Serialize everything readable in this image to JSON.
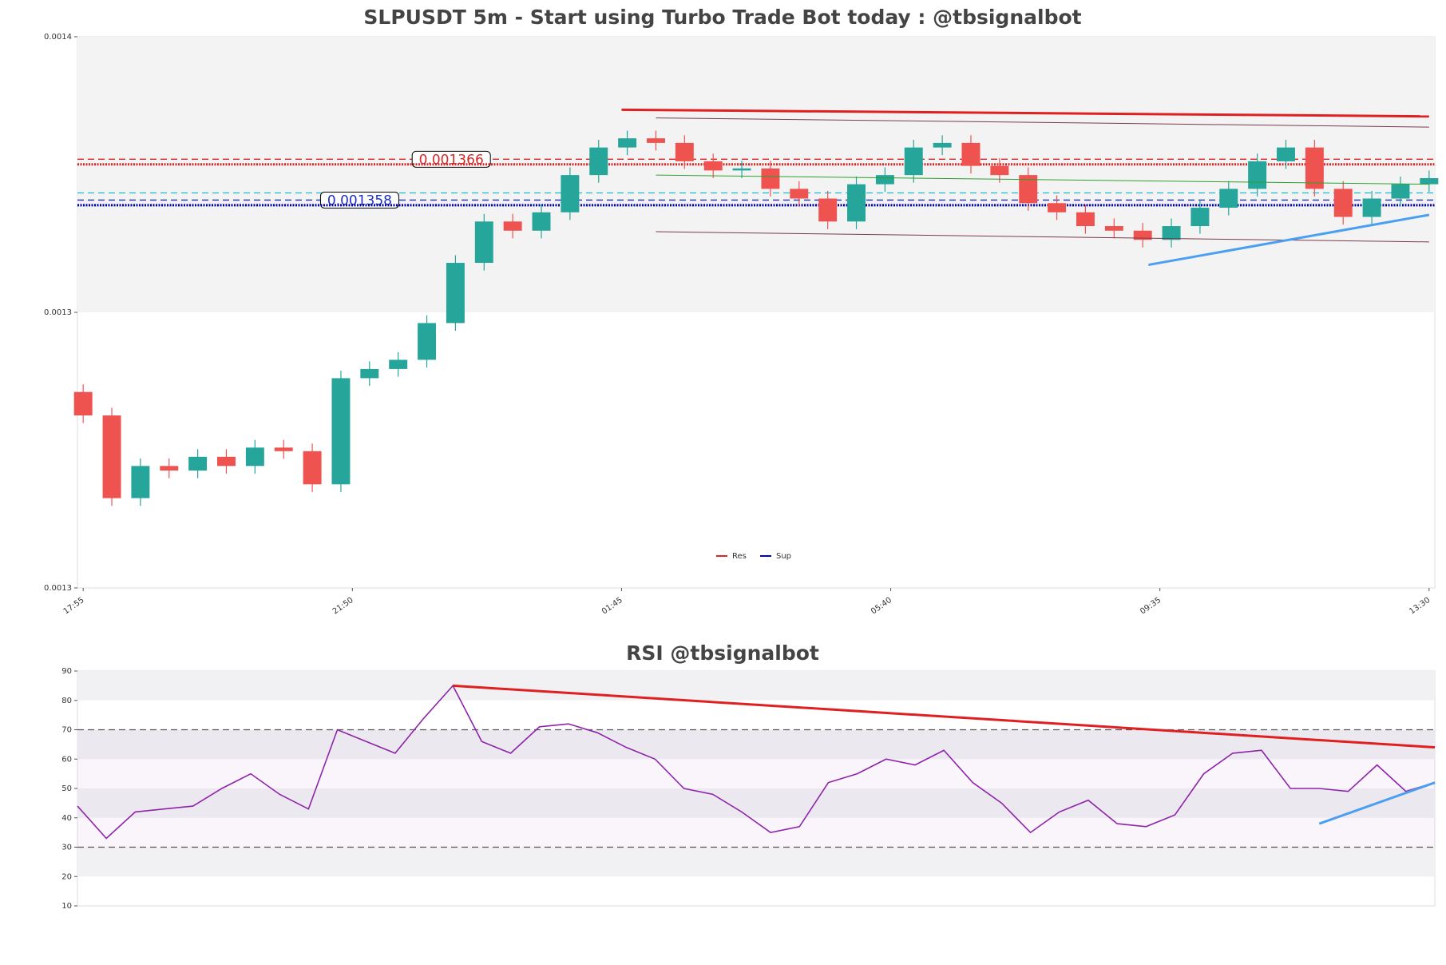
{
  "chart_data": [
    {
      "type": "candlestick",
      "title": "SLPUSDT 5m - Start using Turbo Trade Bot today : @tbsignalbot",
      "x": [
        0,
        5,
        10,
        15,
        20,
        25,
        30,
        35,
        40,
        45,
        50,
        55,
        60,
        65,
        70,
        75,
        80,
        85,
        90,
        95,
        100,
        105,
        110,
        115,
        120,
        125,
        130,
        135,
        140,
        145,
        150,
        155,
        160,
        165,
        170,
        175,
        180,
        185,
        190,
        195,
        200,
        205,
        210,
        215,
        220,
        225,
        230,
        235
      ],
      "open": [
        0.0013204,
        0.0013158,
        0.0012996,
        0.0013059,
        0.001305,
        0.0013077,
        0.0013059,
        0.0013095,
        0.0013088,
        0.0013023,
        0.0013231,
        0.0013249,
        0.0013267,
        0.0013339,
        0.0013457,
        0.0013538,
        0.001352,
        0.0013556,
        0.0013629,
        0.0013683,
        0.0013701,
        0.0013692,
        0.0013656,
        0.0013638,
        0.0013642,
        0.0013602,
        0.0013583,
        0.0013538,
        0.0013611,
        0.0013629,
        0.0013683,
        0.0013692,
        0.0013647,
        0.0013629,
        0.0013574,
        0.0013556,
        0.0013529,
        0.001352,
        0.0013502,
        0.0013529,
        0.0013565,
        0.0013602,
        0.0013656,
        0.0013683,
        0.0013602,
        0.0013547,
        0.0013583,
        0.0013611
      ],
      "high": [
        0.0013219,
        0.0013173,
        0.0013074,
        0.0013074,
        0.0013092,
        0.0013092,
        0.001311,
        0.001311,
        0.0013103,
        0.0013246,
        0.0013264,
        0.0013282,
        0.0013354,
        0.0013472,
        0.0013553,
        0.0013553,
        0.0013571,
        0.0013644,
        0.0013698,
        0.0013716,
        0.0013716,
        0.0013707,
        0.0013671,
        0.0013657,
        0.0013657,
        0.0013617,
        0.0013598,
        0.0013626,
        0.0013644,
        0.0013698,
        0.0013707,
        0.0013707,
        0.0013662,
        0.0013644,
        0.0013589,
        0.0013571,
        0.0013544,
        0.0013535,
        0.0013544,
        0.001358,
        0.0013617,
        0.0013671,
        0.0013698,
        0.0013698,
        0.0013617,
        0.0013598,
        0.0013626,
        0.0013638
      ],
      "low": [
        0.0013143,
        0.0012981,
        0.0012981,
        0.0013035,
        0.0013035,
        0.0013044,
        0.0013044,
        0.0013073,
        0.0013008,
        0.0013008,
        0.0013216,
        0.0013234,
        0.0013252,
        0.0013324,
        0.0013442,
        0.0013505,
        0.0013505,
        0.0013541,
        0.0013614,
        0.0013668,
        0.0013677,
        0.0013641,
        0.0013623,
        0.0013623,
        0.0013587,
        0.0013568,
        0.0013523,
        0.0013523,
        0.0013596,
        0.0013614,
        0.0013668,
        0.0013632,
        0.0013614,
        0.0013559,
        0.0013541,
        0.0013514,
        0.0013505,
        0.0013487,
        0.0013487,
        0.0013514,
        0.001355,
        0.0013587,
        0.0013641,
        0.0013587,
        0.0013532,
        0.0013532,
        0.0013568,
        0.0013596
      ],
      "close": [
        0.0013158,
        0.0012996,
        0.0013059,
        0.001305,
        0.0013077,
        0.0013059,
        0.0013095,
        0.0013088,
        0.0013023,
        0.0013231,
        0.0013249,
        0.0013267,
        0.0013339,
        0.0013457,
        0.0013538,
        0.001352,
        0.0013556,
        0.0013629,
        0.0013683,
        0.0013701,
        0.0013692,
        0.0013656,
        0.0013638,
        0.0013642,
        0.0013602,
        0.0013583,
        0.0013538,
        0.0013611,
        0.0013629,
        0.0013683,
        0.0013692,
        0.0013647,
        0.0013629,
        0.0013574,
        0.0013556,
        0.0013529,
        0.001352,
        0.0013502,
        0.0013529,
        0.0013565,
        0.0013602,
        0.0013656,
        0.0013683,
        0.0013602,
        0.0013547,
        0.0013583,
        0.0013611,
        0.0013623
      ],
      "up_color": "#26a69a",
      "down_color": "#ef5350",
      "xlim": [
        -1,
        236
      ],
      "xticks": [
        {
          "value": 0,
          "label": "17:55"
        },
        {
          "value": 47,
          "label": "21:50"
        },
        {
          "value": 94,
          "label": "01:45"
        },
        {
          "value": 141,
          "label": "05:40"
        },
        {
          "value": 188,
          "label": "09:35"
        },
        {
          "value": 235,
          "label": "13:30"
        }
      ],
      "ylim": [
        0.001282,
        0.00139
      ],
      "yticks": [
        {
          "value": 0.001282,
          "label": "0.0013"
        },
        {
          "value": 0.001336,
          "label": "0.0013"
        },
        {
          "value": 0.00139,
          "label": "0.0014"
        }
      ],
      "levels": [
        {
          "value": 0.001366,
          "label": "0.001366",
          "color": "#d62728",
          "style": "dashed"
        },
        {
          "value": 0.001365,
          "color": "#d62728",
          "style": "dotted"
        },
        {
          "value": 0.0013594,
          "color": "#17becf",
          "style": "dashed"
        },
        {
          "value": 0.001358,
          "label": "0.001358",
          "color": "#1f2fbf",
          "style": "dashed"
        },
        {
          "value": 0.001357,
          "color": "#0000aa",
          "style": "dotted"
        }
      ],
      "trendlines": [
        {
          "x": [
            94,
            235
          ],
          "y": [
            0.0013757,
            0.0013744
          ],
          "color": "#e02020",
          "width": 3
        },
        {
          "x": [
            100,
            235
          ],
          "y": [
            0.0013741,
            0.0013723
          ],
          "color": "#7a3b4d",
          "width": 1
        },
        {
          "x": [
            100,
            235
          ],
          "y": [
            0.0013518,
            0.0013498
          ],
          "color": "#7a3b4d",
          "width": 1
        },
        {
          "x": [
            100,
            235
          ],
          "y": [
            0.0013629,
            0.0013611
          ],
          "color": "#2ca02c",
          "width": 1
        },
        {
          "x": [
            186,
            235
          ],
          "y": [
            0.0013453,
            0.0013551
          ],
          "color": "#4a9ff0",
          "width": 3
        }
      ],
      "legend": [
        {
          "name": "Res",
          "color": "#d62728"
        },
        {
          "name": "Sup",
          "color": "#0000cc"
        }
      ],
      "legend_loc": "lower center"
    },
    {
      "type": "line",
      "title": "RSI @tbsignalbot",
      "x": [
        0,
        5,
        10,
        15,
        20,
        25,
        30,
        35,
        40,
        45,
        50,
        55,
        60,
        65,
        70,
        75,
        80,
        85,
        90,
        95,
        100,
        105,
        110,
        115,
        120,
        125,
        130,
        135,
        140,
        145,
        150,
        155,
        160,
        165,
        170,
        175,
        180,
        185,
        190,
        195,
        200,
        205,
        210,
        215,
        220,
        225,
        230,
        235
      ],
      "values": [
        44,
        33,
        42,
        43,
        44,
        50,
        55,
        48,
        43,
        70,
        66,
        62,
        74,
        85,
        66,
        62,
        71,
        72,
        69,
        64,
        60,
        50,
        48,
        42,
        35,
        37,
        52,
        55,
        60,
        58,
        63,
        52,
        45,
        35,
        42,
        46,
        38,
        37,
        41,
        55,
        62,
        63,
        50,
        50,
        49,
        58,
        49,
        52
      ],
      "color": "#8e24aa",
      "xlim": [
        0,
        235
      ],
      "ylim": [
        10,
        90
      ],
      "yticks": [
        10,
        20,
        30,
        40,
        50,
        60,
        70,
        80,
        90
      ],
      "hlines": [
        30,
        70
      ],
      "trendlines": [
        {
          "x": [
            65,
            235
          ],
          "y": [
            85,
            64
          ],
          "color": "#e02020",
          "width": 3
        },
        {
          "x": [
            215,
            235
          ],
          "y": [
            38,
            52
          ],
          "color": "#4a9ff0",
          "width": 3
        }
      ]
    }
  ]
}
